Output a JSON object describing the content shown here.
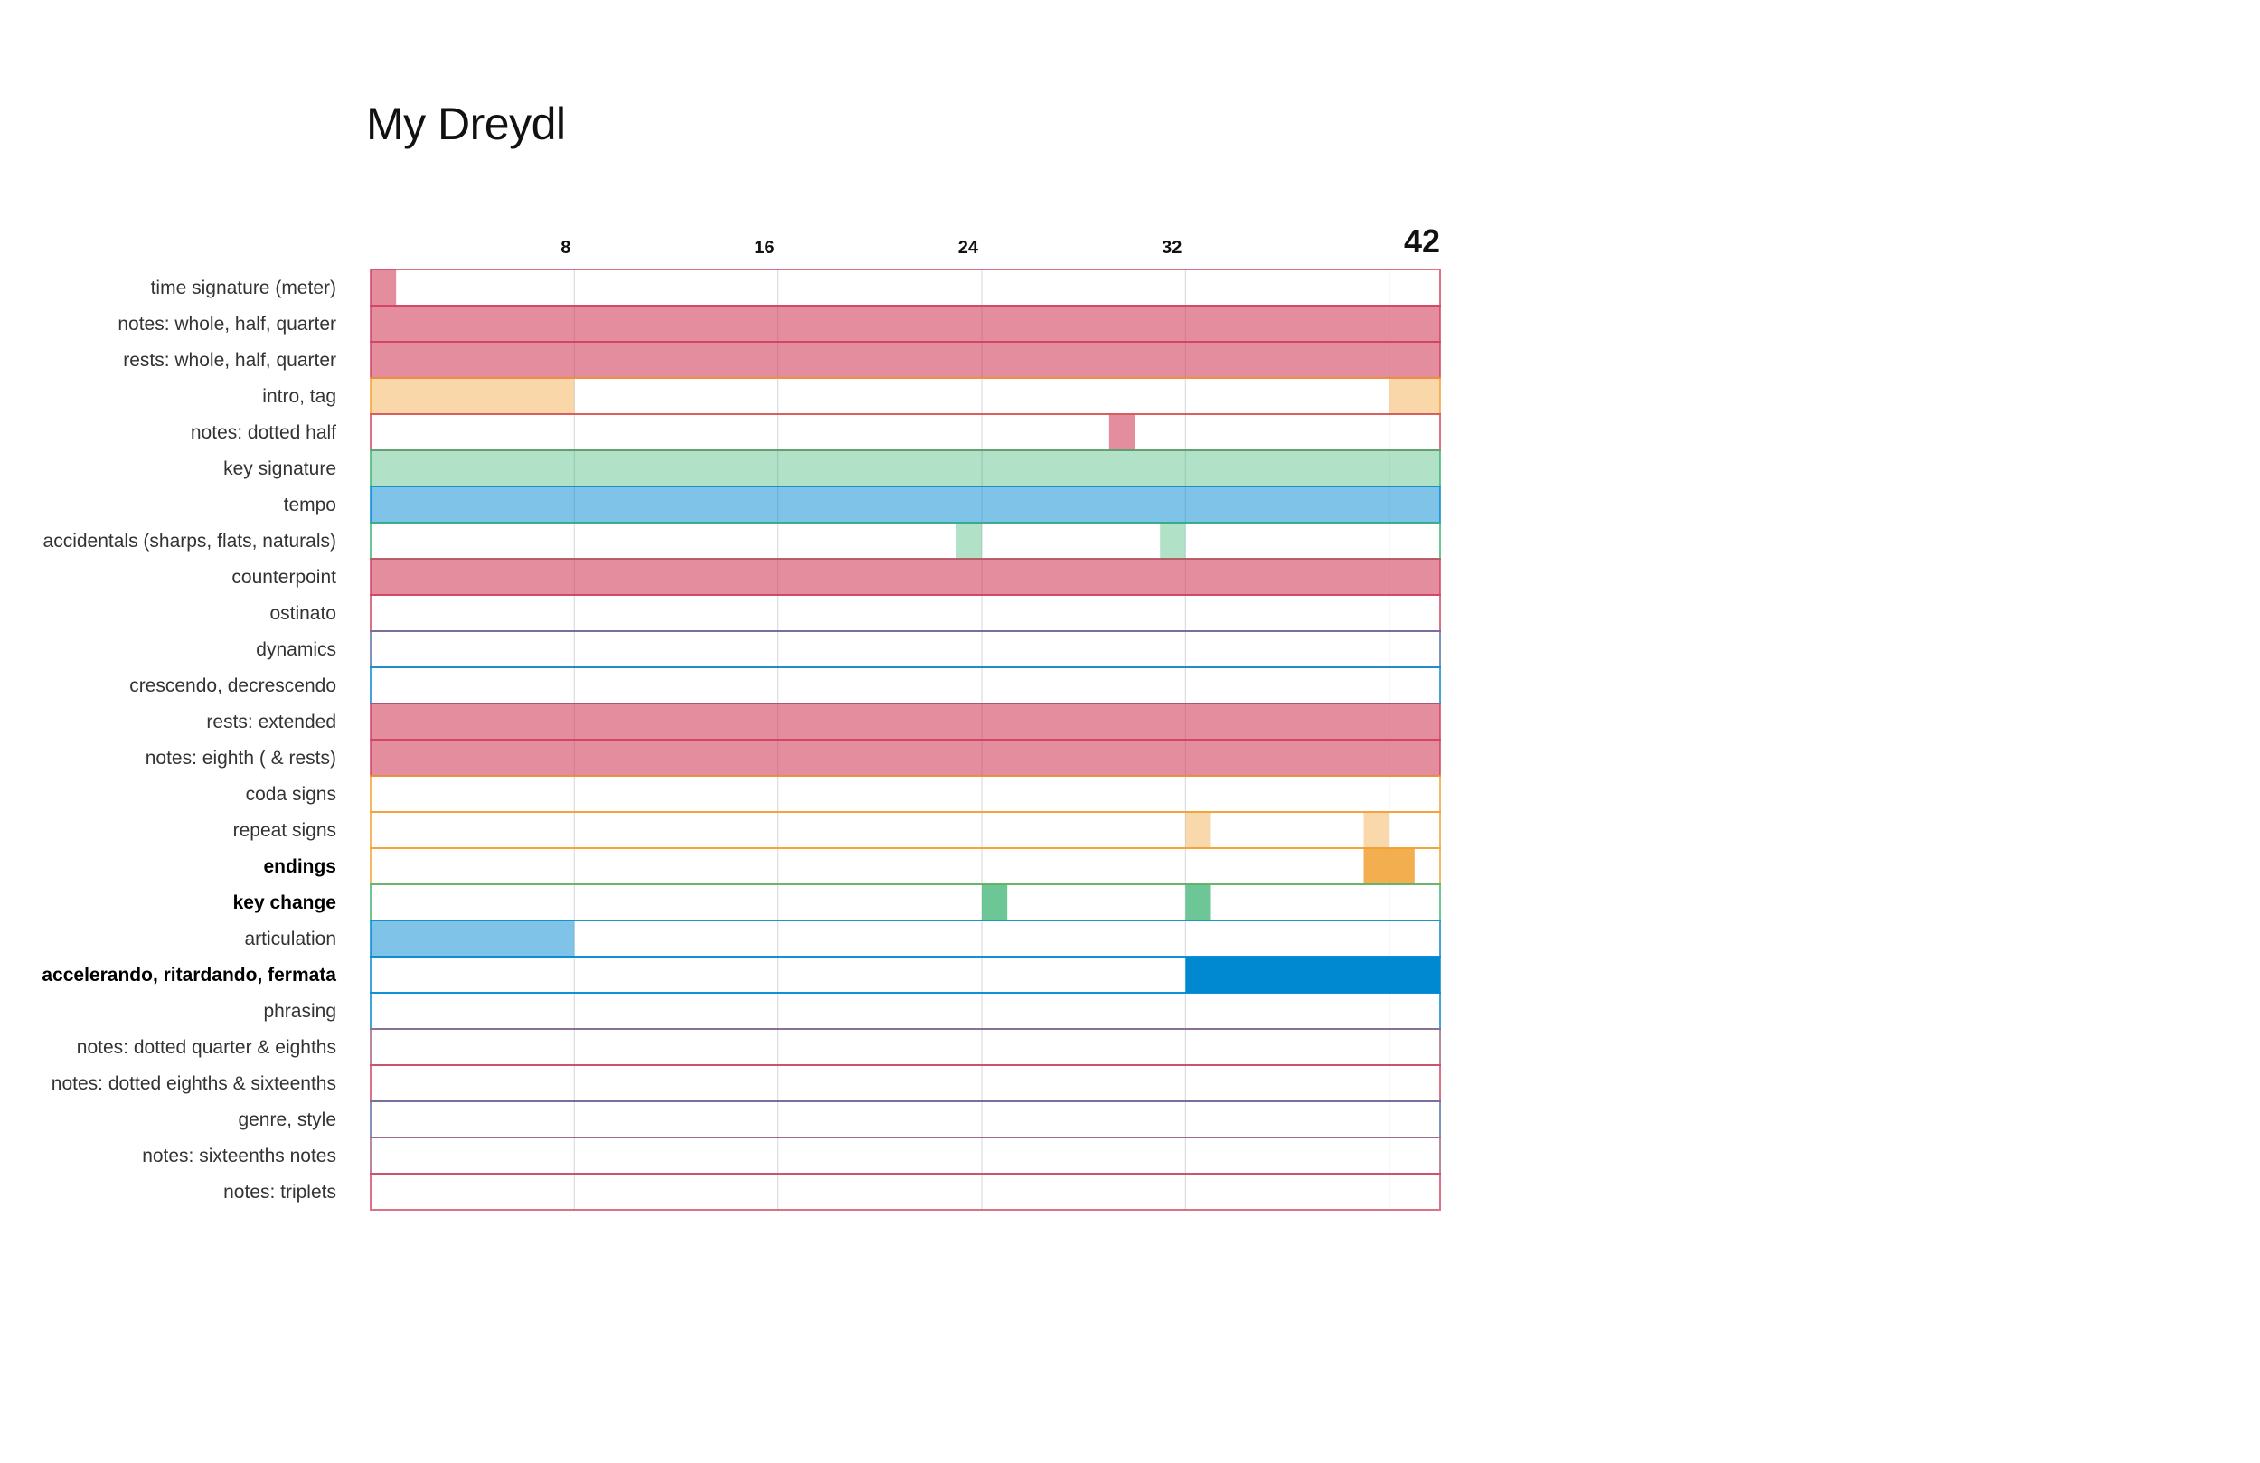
{
  "chart_data": {
    "type": "timeline",
    "title": "My Dreydl",
    "x_range": [
      0,
      42
    ],
    "ticks": [
      {
        "value": 8,
        "label": "8",
        "big": false
      },
      {
        "value": 16,
        "label": "16",
        "big": false
      },
      {
        "value": 24,
        "label": "24",
        "big": false
      },
      {
        "value": 32,
        "label": "32",
        "big": false
      },
      {
        "value": 42,
        "label": "42",
        "big": true
      }
    ],
    "gridlines": [
      8,
      16,
      24,
      32,
      40
    ],
    "colors": {
      "red": "#d2415e",
      "orange": "#f0a030",
      "green": "#3cb371",
      "blue": "#0088d1",
      "slate": "#5a6ea0",
      "mauve": "#a0607a"
    },
    "rows": [
      {
        "label": "time signature (meter)",
        "bold": false,
        "border": "red",
        "segments": [
          {
            "start": 0,
            "end": 1,
            "color": "red",
            "alpha": 0.6
          }
        ]
      },
      {
        "label": "notes: whole, half, quarter",
        "bold": false,
        "border": "red",
        "segments": [
          {
            "start": 0,
            "end": 42,
            "color": "red",
            "alpha": 0.6
          }
        ]
      },
      {
        "label": "rests: whole, half, quarter",
        "bold": false,
        "border": "red",
        "segments": [
          {
            "start": 0,
            "end": 42,
            "color": "red",
            "alpha": 0.6
          }
        ]
      },
      {
        "label": "intro, tag",
        "bold": false,
        "border": "orange",
        "segments": [
          {
            "start": 0,
            "end": 8,
            "color": "orange",
            "alpha": 0.42
          },
          {
            "start": 40,
            "end": 42,
            "color": "orange",
            "alpha": 0.42
          }
        ]
      },
      {
        "label": "notes: dotted half",
        "bold": false,
        "border": "red",
        "segments": [
          {
            "start": 29,
            "end": 30,
            "color": "red",
            "alpha": 0.6
          }
        ]
      },
      {
        "label": "key signature",
        "bold": false,
        "border": "green",
        "segments": [
          {
            "start": 0,
            "end": 42,
            "color": "green",
            "alpha": 0.4
          }
        ]
      },
      {
        "label": "tempo",
        "bold": false,
        "border": "blue",
        "segments": [
          {
            "start": 0,
            "end": 42,
            "color": "blue",
            "alpha": 0.5
          }
        ]
      },
      {
        "label": "accidentals (sharps, flats, naturals)",
        "bold": false,
        "border": "green",
        "segments": [
          {
            "start": 23,
            "end": 24,
            "color": "green",
            "alpha": 0.4
          },
          {
            "start": 31,
            "end": 32,
            "color": "green",
            "alpha": 0.4
          }
        ]
      },
      {
        "label": "counterpoint",
        "bold": false,
        "border": "red",
        "segments": [
          {
            "start": 0,
            "end": 42,
            "color": "red",
            "alpha": 0.6
          }
        ]
      },
      {
        "label": "ostinato",
        "bold": false,
        "border": "red",
        "segments": []
      },
      {
        "label": "dynamics",
        "bold": false,
        "border": "slate",
        "segments": []
      },
      {
        "label": "crescendo, decrescendo",
        "bold": false,
        "border": "blue",
        "segments": []
      },
      {
        "label": "rests: extended",
        "bold": false,
        "border": "red",
        "segments": [
          {
            "start": 0,
            "end": 42,
            "color": "red",
            "alpha": 0.6
          }
        ]
      },
      {
        "label": "notes: eighth ( & rests)",
        "bold": false,
        "border": "red",
        "segments": [
          {
            "start": 0,
            "end": 42,
            "color": "red",
            "alpha": 0.6
          }
        ]
      },
      {
        "label": "coda signs",
        "bold": false,
        "border": "orange",
        "segments": []
      },
      {
        "label": "repeat signs",
        "bold": false,
        "border": "orange",
        "segments": [
          {
            "start": 32,
            "end": 33,
            "color": "orange",
            "alpha": 0.4
          },
          {
            "start": 39,
            "end": 40,
            "color": "orange",
            "alpha": 0.4
          }
        ]
      },
      {
        "label": "endings",
        "bold": true,
        "border": "orange",
        "segments": [
          {
            "start": 39,
            "end": 41,
            "color": "orange",
            "alpha": 0.85
          }
        ]
      },
      {
        "label": "key change",
        "bold": true,
        "border": "green",
        "segments": [
          {
            "start": 24,
            "end": 25,
            "color": "green",
            "alpha": 0.75
          },
          {
            "start": 32,
            "end": 33,
            "color": "green",
            "alpha": 0.75
          }
        ]
      },
      {
        "label": "articulation",
        "bold": false,
        "border": "blue",
        "segments": [
          {
            "start": 0,
            "end": 8,
            "color": "blue",
            "alpha": 0.5
          }
        ]
      },
      {
        "label": "accelerando, ritardando, fermata",
        "bold": true,
        "border": "blue",
        "segments": [
          {
            "start": 32,
            "end": 42,
            "color": "blue",
            "alpha": 1.0
          }
        ]
      },
      {
        "label": "phrasing",
        "bold": false,
        "border": "blue",
        "segments": []
      },
      {
        "label": "notes: dotted quarter & eighths",
        "bold": false,
        "border": "mauve",
        "segments": []
      },
      {
        "label": "notes: dotted eighths & sixteenths",
        "bold": false,
        "border": "red",
        "segments": []
      },
      {
        "label": "genre, style",
        "bold": false,
        "border": "slate",
        "segments": []
      },
      {
        "label": "notes: sixteenths notes",
        "bold": false,
        "border": "mauve",
        "segments": []
      },
      {
        "label": "notes: triplets",
        "bold": false,
        "border": "red",
        "segments": []
      }
    ]
  }
}
